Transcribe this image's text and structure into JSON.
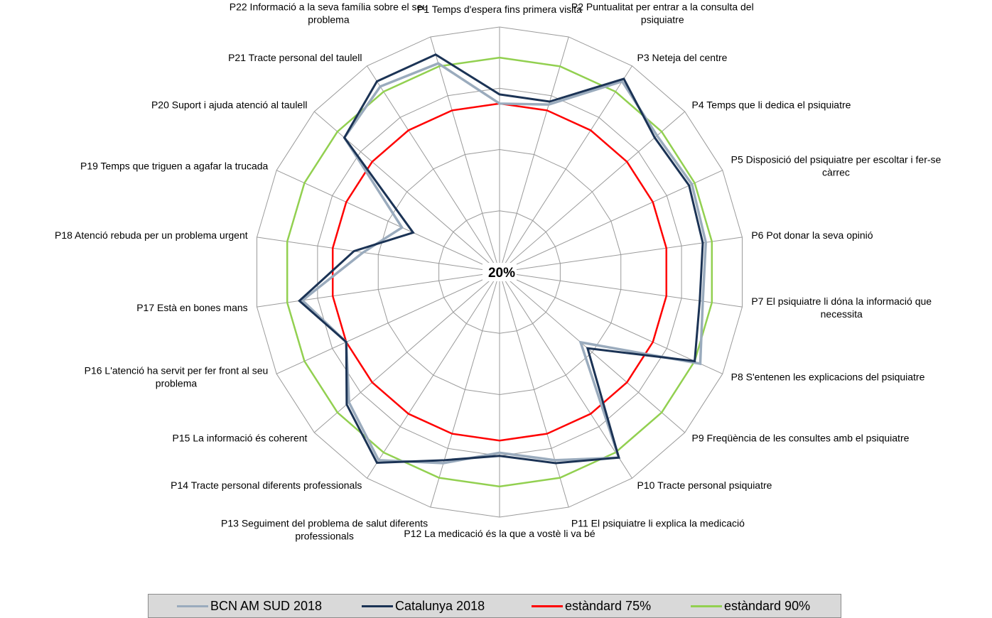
{
  "chart_data": {
    "type": "radar",
    "center_label": "20%",
    "r_range": [
      20,
      100
    ],
    "grid_rings": 4,
    "categories": [
      [
        "P1 Temps d'espera fins primera visita"
      ],
      [
        "P2 Puntualitat per entrar a la consulta del",
        "psiquiatre"
      ],
      [
        "P3 Neteja del centre"
      ],
      [
        "P4 Temps que li dedica el psiquiatre"
      ],
      [
        "P5 Disposició del psiquiatre per escoltar i fer-se",
        "càrrec"
      ],
      [
        "P6 Pot donar la seva opinió"
      ],
      [
        "P7 El psiquiatre li dóna la informació que",
        "necessita"
      ],
      [
        "P8 S'entenen les explicacions del psiquiatre"
      ],
      [
        "P9 Freqüència de les consultes amb el psiquiatre"
      ],
      [
        "P10 Tracte personal psiquiatre"
      ],
      [
        "P11 El psiquiatre li explica la medicació"
      ],
      [
        "P12 La medicació és la que a vostè li va bé"
      ],
      [
        "P13 Seguiment del problema de salut diferents",
        "professionals"
      ],
      [
        "P14 Tracte personal diferents professionals"
      ],
      [
        "P15 La informació és coherent"
      ],
      [
        "P16 L'atenció ha servit per fer front al seu",
        "problema"
      ],
      [
        "P17 Està en bones mans"
      ],
      [
        "P18 Atenció rebuda per un problema urgent"
      ],
      [
        "P19 Temps que triguen a agafar la trucada"
      ],
      [
        "P20 Suport i ajuda atenció al taulell"
      ],
      [
        "P21 Tracte personal del taulell"
      ],
      [
        "P22 Informació a la seva família sobre el seu",
        "problema"
      ]
    ],
    "series": [
      {
        "name": "BCN AM SUD 2018",
        "color": "#9aabbd",
        "width": 3.5,
        "values": [
          75,
          77,
          94,
          88,
          89,
          88,
          87,
          92,
          55,
          92,
          84,
          79,
          85,
          93,
          85,
          75,
          85,
          65,
          55,
          87,
          92,
          91
        ]
      },
      {
        "name": "Catalunya 2018",
        "color": "#1b3355",
        "width": 3,
        "values": [
          78,
          78,
          95,
          87,
          88,
          87,
          86,
          90,
          58,
          92,
          85,
          80,
          84,
          94,
          86,
          75,
          86,
          68,
          51,
          87,
          94,
          94
        ]
      },
      {
        "name": "estàndard 75%",
        "color": "#ff0000",
        "width": 2.5,
        "values": [
          75,
          75,
          75,
          75,
          75,
          75,
          75,
          75,
          75,
          75,
          75,
          75,
          75,
          75,
          75,
          75,
          75,
          75,
          75,
          75,
          75,
          75
        ]
      },
      {
        "name": "estàndard 90%",
        "color": "#92d050",
        "width": 2.5,
        "values": [
          90,
          90,
          90,
          90,
          90,
          90,
          90,
          90,
          90,
          90,
          90,
          90,
          90,
          90,
          90,
          90,
          90,
          90,
          90,
          90,
          90,
          90
        ]
      }
    ],
    "legend": {
      "position": "bottom",
      "background": "#d9d9d9"
    }
  }
}
